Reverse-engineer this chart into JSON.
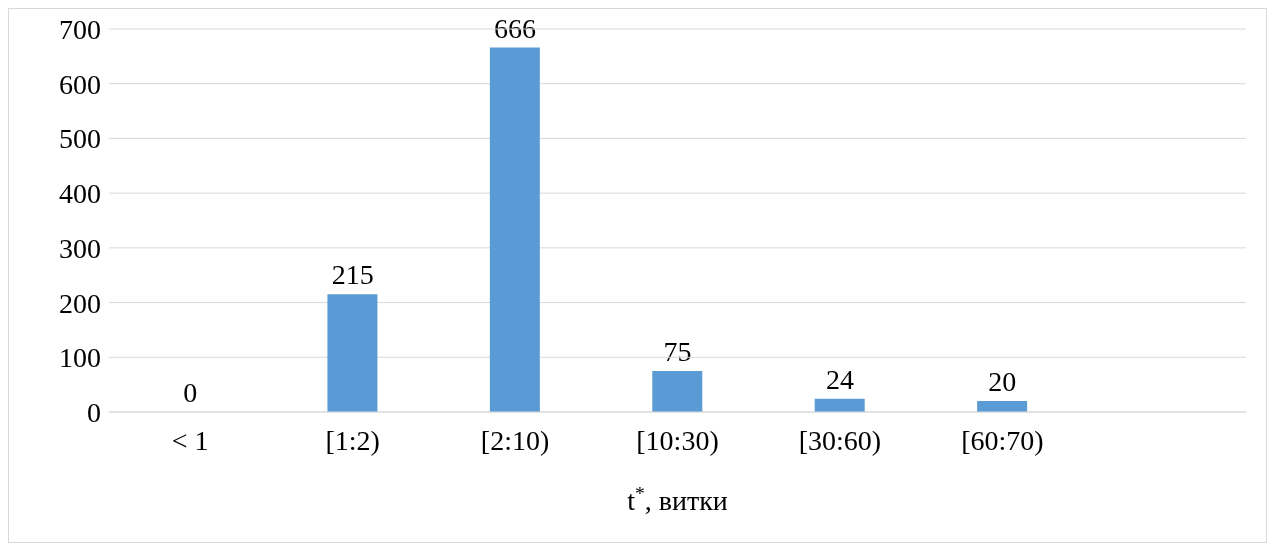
{
  "chart_data": {
    "type": "bar",
    "categories": [
      "< 1",
      "[1:2)",
      "[2:10)",
      "[10:30)",
      "[30:60)",
      "[60:70)",
      null
    ],
    "values": [
      0,
      215,
      666,
      75,
      24,
      20,
      null
    ],
    "color": "#5b9bd5",
    "xlabel": "t$^{*}$, витки",
    "ylim": [
      0,
      700
    ],
    "yticks": [
      0,
      100,
      200,
      300,
      400,
      500,
      600,
      700
    ],
    "grid": "y",
    "data_labels": true,
    "legend": false
  }
}
